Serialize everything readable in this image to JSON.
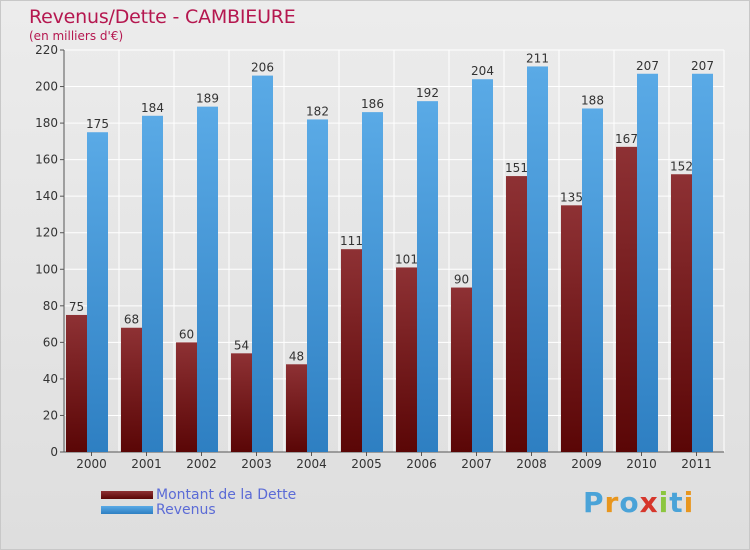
{
  "chart_data": {
    "type": "bar",
    "title": "Revenus/Dette - CAMBIEURE",
    "subtitle": "(en milliers d'€)",
    "categories": [
      "2000",
      "2001",
      "2002",
      "2003",
      "2004",
      "2005",
      "2006",
      "2007",
      "2008",
      "2009",
      "2010",
      "2011"
    ],
    "series": [
      {
        "name": "Montant de la Dette",
        "values": [
          75,
          68,
          60,
          54,
          48,
          111,
          101,
          90,
          151,
          135,
          167,
          152
        ]
      },
      {
        "name": "Revenus",
        "values": [
          175,
          184,
          189,
          206,
          182,
          186,
          192,
          204,
          211,
          188,
          207,
          207
        ]
      }
    ],
    "ylim": [
      0,
      220
    ],
    "yticks": [
      0,
      20,
      40,
      60,
      80,
      100,
      120,
      140,
      160,
      180,
      200,
      220
    ],
    "grid": true,
    "legend_placement": "bottom-left"
  },
  "colors": {
    "debt_light": "#8e3134",
    "debt_dark": "#5a0606",
    "revenue_light": "#5aaae6",
    "revenue_dark": "#2e7fc2",
    "title": "#b5174f",
    "legend_text": "#5b6bd6"
  },
  "logo": {
    "text": "Proxiti",
    "letter_colors": [
      "#4aa3d8",
      "#e8961e",
      "#4aa3d8",
      "#d6362b",
      "#8cc63f",
      "#4aa3d8",
      "#e8961e"
    ]
  }
}
